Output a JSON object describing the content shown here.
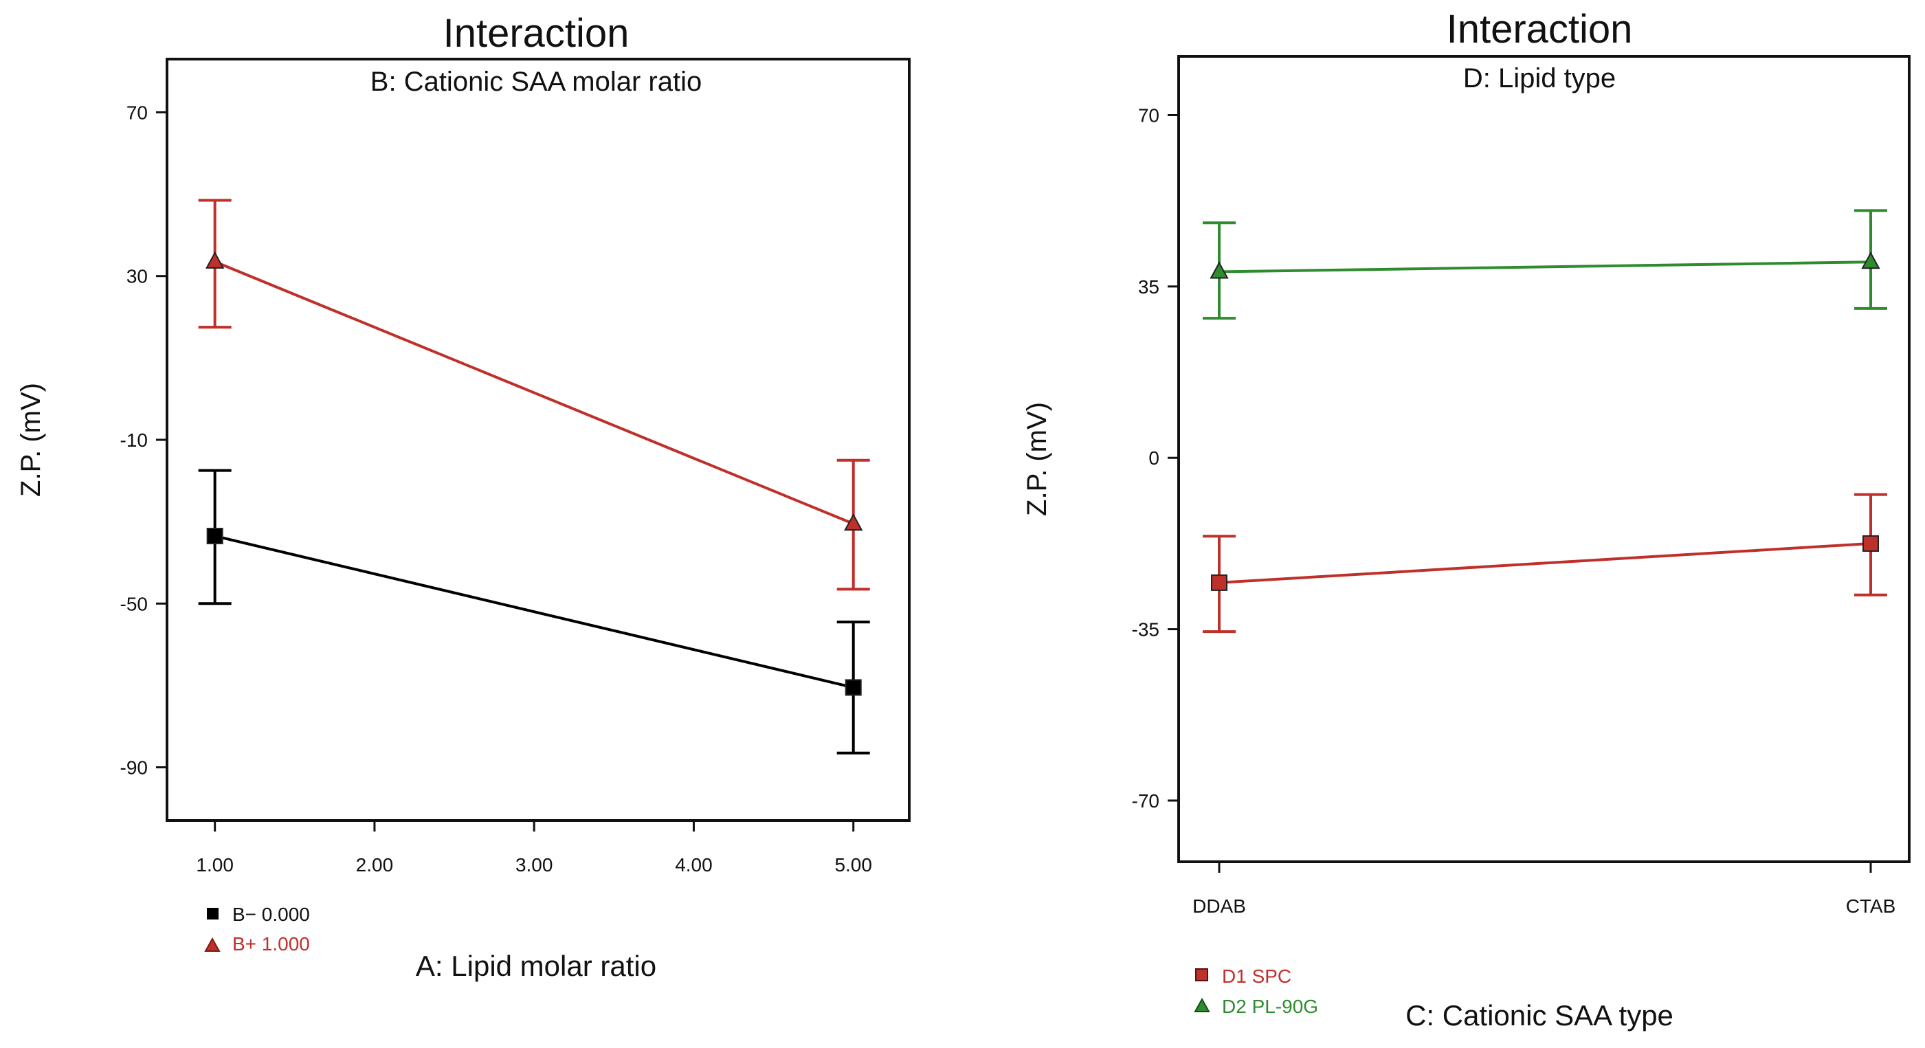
{
  "chart_data": [
    {
      "type": "line",
      "title": "Interaction",
      "subtitle": "B: Cationic SAA molar ratio",
      "xlabel": "A: Lipid molar ratio",
      "ylabel": "Z.P. (mV)",
      "xlim": [
        0.7,
        5.35
      ],
      "ylim": [
        -103,
        83
      ],
      "x_ticks": [
        1.0,
        2.0,
        3.0,
        4.0,
        5.0
      ],
      "x_tick_labels": [
        "1.00",
        "2.00",
        "3.00",
        "4.00",
        "5.00"
      ],
      "y_ticks": [
        70,
        30,
        -10,
        -50,
        -90
      ],
      "y_tick_labels": [
        "70",
        "30",
        "-10",
        "-50",
        "-90"
      ],
      "grid": false,
      "legend_position": "bottom-left",
      "series": [
        {
          "name": "B− 0.000",
          "marker": "square",
          "color": "#000000",
          "x": [
            1.0,
            5.0
          ],
          "values": [
            -33.5,
            -70.5
          ],
          "error_low": [
            -50,
            -86.5
          ],
          "error_high": [
            -17.5,
            -54.5
          ]
        },
        {
          "name": "B+ 1.000",
          "marker": "triangle",
          "color": "#c0302a",
          "x": [
            1.0,
            5.0
          ],
          "values": [
            33.5,
            -30.5
          ],
          "error_low": [
            17.5,
            -46.5
          ],
          "error_high": [
            48.5,
            -15
          ]
        }
      ]
    },
    {
      "type": "line",
      "title": "Interaction",
      "subtitle": "D: Lipid type",
      "xlabel": "C: Cationic SAA type",
      "ylabel": "Z.P. (mV)",
      "ylim": [
        -82.5,
        82
      ],
      "categories": [
        "DDAB",
        "CTAB"
      ],
      "y_ticks": [
        70,
        35,
        0,
        -35,
        -70
      ],
      "y_tick_labels": [
        "70",
        "35",
        "0",
        "-35",
        "-70"
      ],
      "grid": false,
      "legend_position": "bottom-left",
      "series": [
        {
          "name": "D1 SPC",
          "marker": "square",
          "color": "#c0302a",
          "values": [
            -25.5,
            -17.5
          ],
          "error_low": [
            -35.5,
            -28
          ],
          "error_high": [
            -16,
            -7.5
          ]
        },
        {
          "name": "D2 PL-90G",
          "marker": "triangle",
          "color": "#2e8b2e",
          "values": [
            38,
            40
          ],
          "error_low": [
            28.5,
            30.5
          ],
          "error_high": [
            48,
            50.5
          ]
        }
      ]
    }
  ]
}
